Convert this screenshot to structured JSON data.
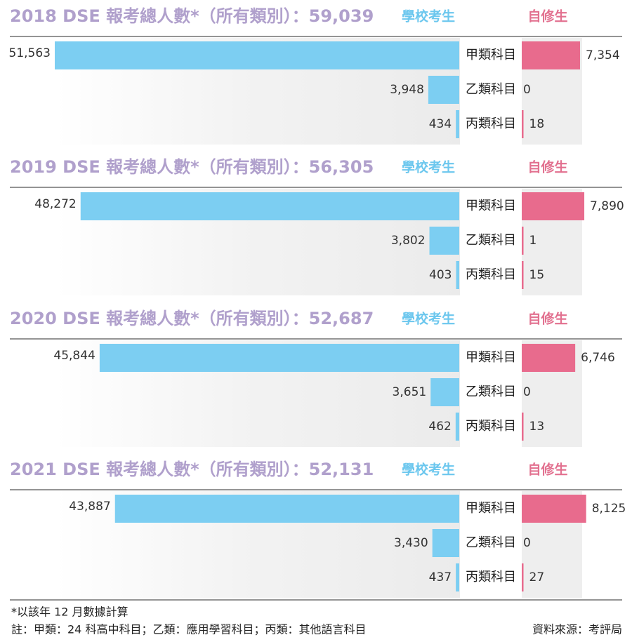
{
  "legend": {
    "school": "學校考生",
    "self": "自修生"
  },
  "colors": {
    "school": "#7ccef2",
    "self": "#e86b8d",
    "title": "#b0a0cc",
    "panel": "#eeeeee"
  },
  "chart_data": [
    {
      "type": "bar",
      "title": "2018 DSE 報考總人數*（所有類別）：59,039",
      "categories": [
        "甲類科目",
        "乙類科目",
        "丙類科目"
      ],
      "series": [
        {
          "name": "學校考生",
          "values": [
            51563,
            3948,
            434
          ],
          "labels": [
            "51,563",
            "3,948",
            "434"
          ]
        },
        {
          "name": "自修生",
          "values": [
            7354,
            0,
            18
          ],
          "labels": [
            "7,354",
            "0",
            "18"
          ]
        }
      ]
    },
    {
      "type": "bar",
      "title": "2019 DSE 報考總人數*（所有類別）：56,305",
      "categories": [
        "甲類科目",
        "乙類科目",
        "丙類科目"
      ],
      "series": [
        {
          "name": "學校考生",
          "values": [
            48272,
            3802,
            403
          ],
          "labels": [
            "48,272",
            "3,802",
            "403"
          ]
        },
        {
          "name": "自修生",
          "values": [
            7890,
            1,
            15
          ],
          "labels": [
            "7,890",
            "1",
            "15"
          ]
        }
      ]
    },
    {
      "type": "bar",
      "title": "2020 DSE 報考總人數*（所有類別）：52,687",
      "categories": [
        "甲類科目",
        "乙類科目",
        "丙類科目"
      ],
      "series": [
        {
          "name": "學校考生",
          "values": [
            45844,
            3651,
            462
          ],
          "labels": [
            "45,844",
            "3,651",
            "462"
          ]
        },
        {
          "name": "自修生",
          "values": [
            6746,
            0,
            13
          ],
          "labels": [
            "6,746",
            "0",
            "13"
          ]
        }
      ]
    },
    {
      "type": "bar",
      "title": "2021 DSE 報考總人數*（所有類別）：52,131",
      "categories": [
        "甲類科目",
        "乙類科目",
        "丙類科目"
      ],
      "series": [
        {
          "name": "學校考生",
          "values": [
            43887,
            3430,
            437
          ],
          "labels": [
            "43,887",
            "3,430",
            "437"
          ]
        },
        {
          "name": "自修生",
          "values": [
            8125,
            0,
            27
          ],
          "labels": [
            "8,125",
            "0",
            "27"
          ]
        }
      ]
    }
  ],
  "footnotes": {
    "asterisk": "*以該年 12 月數據計算",
    "note": "註：甲類：24 科高中科目；乙類：應用學習科目；丙類：其他語言科目",
    "source": "資料來源：考評局"
  }
}
